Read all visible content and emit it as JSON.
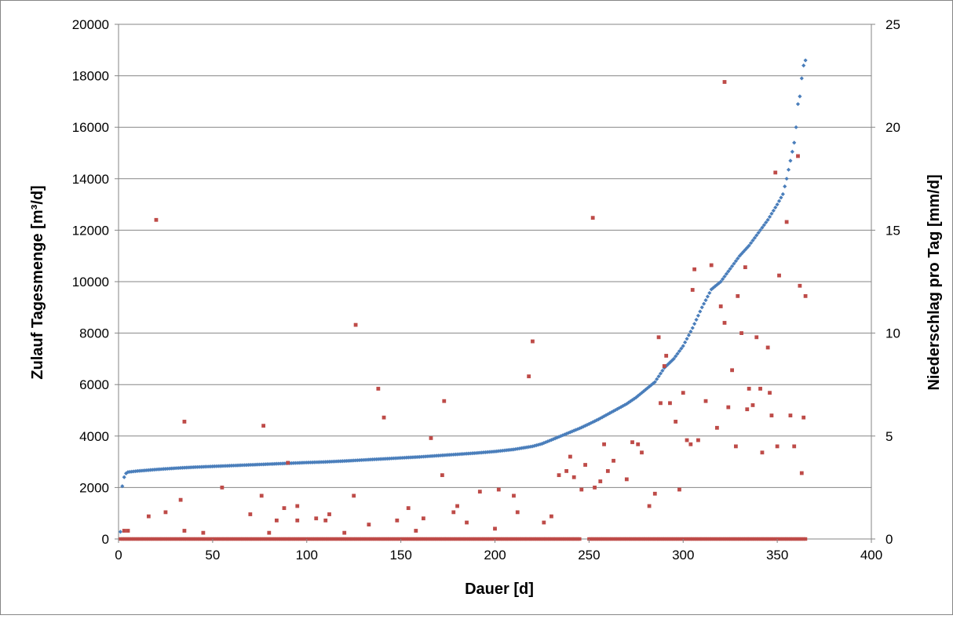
{
  "chart_data": {
    "type": "scatter",
    "title": "",
    "xlabel": "Dauer [d]",
    "ylabel": "Zulauf Tagesmenge [m³/d]",
    "y2label": "Niederschlag pro Tag [mm/d]",
    "xlim": [
      0,
      400
    ],
    "ylim": [
      0,
      20000
    ],
    "y2lim": [
      0,
      25
    ],
    "xticks": [
      "0",
      "50",
      "100",
      "150",
      "200",
      "250",
      "300",
      "350",
      "400"
    ],
    "yticks": [
      "0",
      "2000",
      "4000",
      "6000",
      "8000",
      "10000",
      "12000",
      "14000",
      "16000",
      "18000",
      "20000"
    ],
    "y2ticks": [
      "0",
      "5",
      "10",
      "15",
      "20",
      "25"
    ],
    "grid": true,
    "legend": "none",
    "colors": {
      "zulauf": "#4a7ebb",
      "niederschlag": "#be4b48",
      "grid": "#868686",
      "frame": "#868686"
    },
    "series": [
      {
        "axis": "left",
        "points": [
          [
            1,
            280
          ],
          [
            2,
            2050
          ],
          [
            3,
            2400
          ],
          [
            4,
            2550
          ],
          [
            5,
            2600
          ],
          [
            10,
            2640
          ],
          [
            20,
            2700
          ],
          [
            30,
            2750
          ],
          [
            40,
            2790
          ],
          [
            50,
            2820
          ],
          [
            60,
            2850
          ],
          [
            70,
            2880
          ],
          [
            80,
            2910
          ],
          [
            90,
            2940
          ],
          [
            100,
            2970
          ],
          [
            110,
            2995
          ],
          [
            120,
            3030
          ],
          [
            130,
            3070
          ],
          [
            140,
            3110
          ],
          [
            150,
            3150
          ],
          [
            160,
            3190
          ],
          [
            170,
            3240
          ],
          [
            180,
            3290
          ],
          [
            190,
            3340
          ],
          [
            200,
            3400
          ],
          [
            210,
            3480
          ],
          [
            220,
            3600
          ],
          [
            225,
            3700
          ],
          [
            230,
            3850
          ],
          [
            235,
            4000
          ],
          [
            240,
            4150
          ],
          [
            245,
            4300
          ],
          [
            250,
            4470
          ],
          [
            255,
            4650
          ],
          [
            260,
            4850
          ],
          [
            265,
            5050
          ],
          [
            270,
            5250
          ],
          [
            275,
            5500
          ],
          [
            280,
            5800
          ],
          [
            285,
            6100
          ],
          [
            290,
            6650
          ],
          [
            295,
            7000
          ],
          [
            300,
            7500
          ],
          [
            305,
            8200
          ],
          [
            310,
            9000
          ],
          [
            315,
            9700
          ],
          [
            320,
            10000
          ],
          [
            325,
            10500
          ],
          [
            330,
            11000
          ],
          [
            335,
            11400
          ],
          [
            340,
            11900
          ],
          [
            345,
            12400
          ],
          [
            350,
            13000
          ],
          [
            353,
            13400
          ],
          [
            355,
            14000
          ],
          [
            357,
            14700
          ],
          [
            359,
            15400
          ],
          [
            360,
            16000
          ],
          [
            361,
            16900
          ],
          [
            362,
            17200
          ],
          [
            363,
            17900
          ],
          [
            364,
            18400
          ],
          [
            365,
            18600
          ]
        ]
      },
      {
        "axis": "right",
        "points": [
          [
            3,
            0.4
          ],
          [
            5,
            0.4
          ],
          [
            16,
            1.1
          ],
          [
            20,
            15.5
          ],
          [
            25,
            1.3
          ],
          [
            33,
            1.9
          ],
          [
            35,
            0.4
          ],
          [
            35,
            5.7
          ],
          [
            45,
            0.3
          ],
          [
            55,
            2.5
          ],
          [
            70,
            1.2
          ],
          [
            76,
            2.1
          ],
          [
            77,
            5.5
          ],
          [
            80,
            0.3
          ],
          [
            84,
            0.9
          ],
          [
            88,
            1.5
          ],
          [
            90,
            3.7
          ],
          [
            95,
            1.6
          ],
          [
            95,
            0.9
          ],
          [
            105,
            1.0
          ],
          [
            110,
            0.9
          ],
          [
            112,
            1.2
          ],
          [
            120,
            0.3
          ],
          [
            125,
            2.1
          ],
          [
            126,
            10.4
          ],
          [
            133,
            0.7
          ],
          [
            138,
            7.3
          ],
          [
            141,
            5.9
          ],
          [
            148,
            0.9
          ],
          [
            154,
            1.5
          ],
          [
            158,
            0.4
          ],
          [
            162,
            1.0
          ],
          [
            166,
            4.9
          ],
          [
            172,
            3.1
          ],
          [
            173,
            6.7
          ],
          [
            178,
            1.3
          ],
          [
            180,
            1.6
          ],
          [
            185,
            0.8
          ],
          [
            192,
            2.3
          ],
          [
            200,
            0.5
          ],
          [
            202,
            2.4
          ],
          [
            210,
            2.1
          ],
          [
            212,
            1.3
          ],
          [
            218,
            7.9
          ],
          [
            220,
            9.6
          ],
          [
            226,
            0.8
          ],
          [
            230,
            1.1
          ],
          [
            234,
            3.1
          ],
          [
            238,
            3.3
          ],
          [
            240,
            4.0
          ],
          [
            242,
            3.0
          ],
          [
            246,
            2.4
          ],
          [
            248,
            3.6
          ],
          [
            252,
            15.6
          ],
          [
            253,
            2.5
          ],
          [
            256,
            2.8
          ],
          [
            258,
            4.6
          ],
          [
            260,
            3.3
          ],
          [
            263,
            3.8
          ],
          [
            270,
            2.9
          ],
          [
            273,
            4.7
          ],
          [
            276,
            4.6
          ],
          [
            278,
            4.2
          ],
          [
            282,
            1.6
          ],
          [
            285,
            2.2
          ],
          [
            287,
            9.8
          ],
          [
            288,
            6.6
          ],
          [
            290,
            8.4
          ],
          [
            291,
            8.9
          ],
          [
            293,
            6.6
          ],
          [
            296,
            5.7
          ],
          [
            298,
            2.4
          ],
          [
            300,
            7.1
          ],
          [
            302,
            4.8
          ],
          [
            304,
            4.6
          ],
          [
            305,
            12.1
          ],
          [
            306,
            13.1
          ],
          [
            308,
            4.8
          ],
          [
            312,
            6.7
          ],
          [
            315,
            13.3
          ],
          [
            318,
            5.4
          ],
          [
            320,
            11.3
          ],
          [
            322,
            10.5
          ],
          [
            322,
            22.2
          ],
          [
            324,
            6.4
          ],
          [
            326,
            8.2
          ],
          [
            328,
            4.5
          ],
          [
            329,
            11.8
          ],
          [
            331,
            10.0
          ],
          [
            333,
            13.2
          ],
          [
            334,
            6.3
          ],
          [
            335,
            7.3
          ],
          [
            337,
            6.5
          ],
          [
            339,
            9.8
          ],
          [
            341,
            7.3
          ],
          [
            342,
            4.2
          ],
          [
            345,
            9.3
          ],
          [
            346,
            7.1
          ],
          [
            347,
            6.0
          ],
          [
            349,
            17.8
          ],
          [
            350,
            4.5
          ],
          [
            351,
            12.8
          ],
          [
            355,
            15.4
          ],
          [
            357,
            6.0
          ],
          [
            359,
            4.5
          ],
          [
            361,
            18.6
          ],
          [
            362,
            12.3
          ],
          [
            363,
            3.2
          ],
          [
            364,
            5.9
          ],
          [
            365,
            11.8
          ]
        ],
        "zero_points_x_ranges": [
          [
            1,
            245
          ],
          [
            250,
            365
          ]
        ]
      }
    ]
  }
}
